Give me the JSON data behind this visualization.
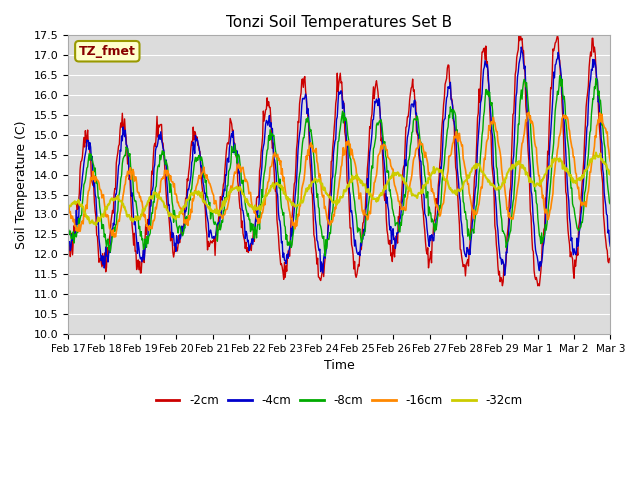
{
  "title": "Tonzi Soil Temperatures Set B",
  "xlabel": "Time",
  "ylabel": "Soil Temperature (C)",
  "ylim": [
    10.0,
    17.5
  ],
  "yticks": [
    10.0,
    10.5,
    11.0,
    11.5,
    12.0,
    12.5,
    13.0,
    13.5,
    14.0,
    14.5,
    15.0,
    15.5,
    16.0,
    16.5,
    17.0,
    17.5
  ],
  "xtick_labels": [
    "Feb 17",
    "Feb 18",
    "Feb 19",
    "Feb 20",
    "Feb 21",
    "Feb 22",
    "Feb 23",
    "Feb 24",
    "Feb 25",
    "Feb 26",
    "Feb 27",
    "Feb 28",
    "Feb 29",
    "Mar 1",
    "Mar 2",
    "Mar 3"
  ],
  "series_colors": [
    "#cc0000",
    "#0000cc",
    "#00aa00",
    "#ff8800",
    "#cccc00"
  ],
  "series_labels": [
    "-2cm",
    "-4cm",
    "-8cm",
    "-16cm",
    "-32cm"
  ],
  "annotation_text": "TZ_fmet",
  "annotation_bg": "#ffffcc",
  "annotation_border": "#999900",
  "annotation_text_color": "#880000",
  "plot_bg": "#dcdcdc",
  "fig_bg": "#ffffff"
}
